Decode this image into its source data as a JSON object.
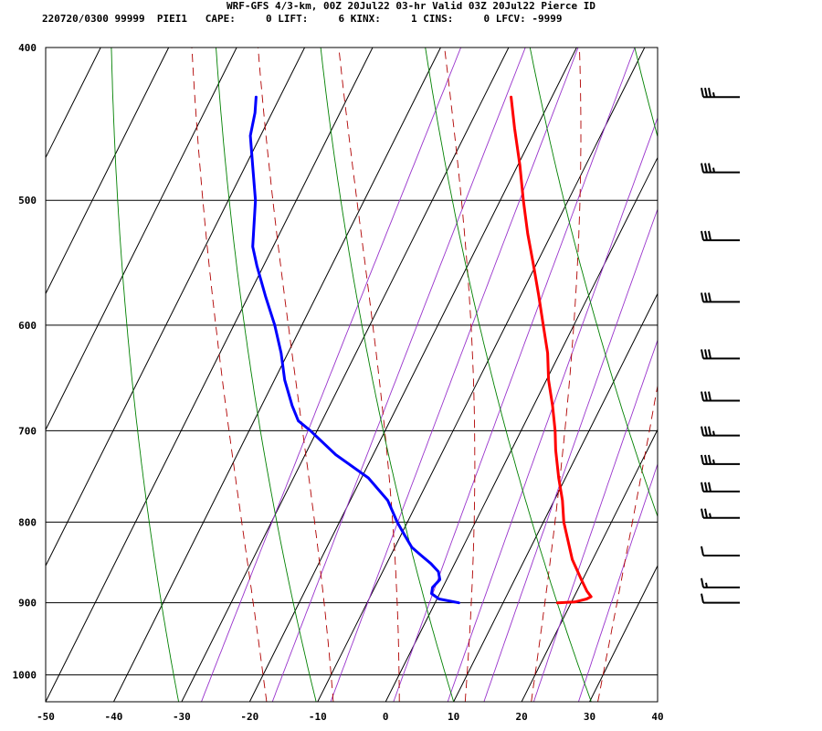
{
  "header": {
    "title": "WRF-GFS 4/3-km, 00Z 20Jul22 03-hr Valid 03Z 20Jul22 Pierce ID",
    "indices": "220720/0300 99999  PIEI1   CAPE:     0 LIFT:     6 KINX:     1 CINS:     0 LFCV: -9999"
  },
  "chart_data": {
    "type": "line",
    "title": "WRF-GFS 4/3-km, 00Z 20Jul22 03-hr Valid 03Z 20Jul22 Pierce ID",
    "xlabel": "",
    "ylabel": "",
    "x_ticks": [
      -50,
      -40,
      -30,
      -20,
      -10,
      0,
      10,
      20,
      30,
      40
    ],
    "y_ticks": [
      400,
      500,
      600,
      700,
      800,
      900,
      1000
    ],
    "xlim": [
      -50,
      40
    ],
    "ylim": [
      1040,
      400
    ],
    "y_scale": "log-pressure",
    "skew": "skew-T",
    "grid": true,
    "colors": {
      "temperature": "#ff0000",
      "dewpoint": "#0000ff",
      "dry_adiabat": "#008000",
      "moist_adiabat": "#b00000",
      "mixing_ratio": "#9933cc",
      "grid": "#000000"
    },
    "series": [
      {
        "role": "temperature",
        "color": "#ff0000",
        "points": [
          {
            "p": 900,
            "t": 18.0
          },
          {
            "p": 899,
            "t": 20.5
          },
          {
            "p": 895,
            "t": 22.0
          },
          {
            "p": 892,
            "t": 22.5
          },
          {
            "p": 885,
            "t": 21.5
          },
          {
            "p": 870,
            "t": 19.8
          },
          {
            "p": 845,
            "t": 17.0
          },
          {
            "p": 800,
            "t": 13.0
          },
          {
            "p": 775,
            "t": 11.2
          },
          {
            "p": 750,
            "t": 9.0
          },
          {
            "p": 720,
            "t": 6.5
          },
          {
            "p": 700,
            "t": 5.0
          },
          {
            "p": 675,
            "t": 2.8
          },
          {
            "p": 650,
            "t": 0.3
          },
          {
            "p": 625,
            "t": -1.8
          },
          {
            "p": 600,
            "t": -4.5
          },
          {
            "p": 575,
            "t": -7.3
          },
          {
            "p": 550,
            "t": -10.3
          },
          {
            "p": 525,
            "t": -13.5
          },
          {
            "p": 500,
            "t": -16.6
          },
          {
            "p": 475,
            "t": -19.7
          },
          {
            "p": 450,
            "t": -23.2
          },
          {
            "p": 430,
            "t": -26.0
          }
        ]
      },
      {
        "role": "dewpoint",
        "color": "#0000ff",
        "points": [
          {
            "p": 900,
            "t": 3.5
          },
          {
            "p": 895,
            "t": 0.3
          },
          {
            "p": 888,
            "t": -1.2
          },
          {
            "p": 880,
            "t": -1.5
          },
          {
            "p": 870,
            "t": -1.0
          },
          {
            "p": 860,
            "t": -1.8
          },
          {
            "p": 850,
            "t": -3.5
          },
          {
            "p": 840,
            "t": -5.5
          },
          {
            "p": 830,
            "t": -7.5
          },
          {
            "p": 815,
            "t": -9.5
          },
          {
            "p": 800,
            "t": -11.5
          },
          {
            "p": 775,
            "t": -14.5
          },
          {
            "p": 750,
            "t": -19.0
          },
          {
            "p": 725,
            "t": -25.5
          },
          {
            "p": 700,
            "t": -31.0
          },
          {
            "p": 690,
            "t": -33.5
          },
          {
            "p": 675,
            "t": -35.5
          },
          {
            "p": 650,
            "t": -38.5
          },
          {
            "p": 625,
            "t": -41.0
          },
          {
            "p": 600,
            "t": -44.0
          },
          {
            "p": 575,
            "t": -47.5
          },
          {
            "p": 550,
            "t": -51.0
          },
          {
            "p": 535,
            "t": -53.0
          },
          {
            "p": 500,
            "t": -56.0
          },
          {
            "p": 475,
            "t": -59.0
          },
          {
            "p": 455,
            "t": -61.5
          },
          {
            "p": 440,
            "t": -62.5
          },
          {
            "p": 430,
            "t": -63.5
          }
        ]
      }
    ],
    "wind_barbs": [
      {
        "p": 430,
        "speed_kt": 35
      },
      {
        "p": 480,
        "speed_kt": 35
      },
      {
        "p": 530,
        "speed_kt": 30
      },
      {
        "p": 580,
        "speed_kt": 30
      },
      {
        "p": 630,
        "speed_kt": 30
      },
      {
        "p": 670,
        "speed_kt": 30
      },
      {
        "p": 705,
        "speed_kt": 35
      },
      {
        "p": 735,
        "speed_kt": 35
      },
      {
        "p": 765,
        "speed_kt": 30
      },
      {
        "p": 795,
        "speed_kt": 25
      },
      {
        "p": 840,
        "speed_kt": 10
      },
      {
        "p": 880,
        "speed_kt": 15
      },
      {
        "p": 900,
        "speed_kt": 10
      }
    ]
  }
}
